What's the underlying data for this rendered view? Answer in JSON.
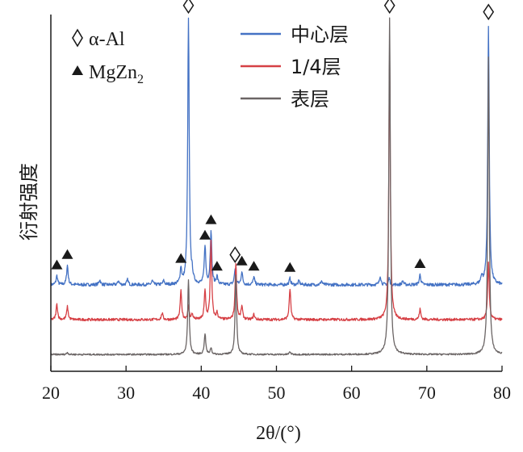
{
  "chart_data": {
    "type": "line",
    "xlabel": "2θ/(°)",
    "ylabel": "衍射强度",
    "xlim": [
      20,
      80
    ],
    "xticks": [
      20,
      30,
      40,
      50,
      60,
      70,
      80
    ],
    "grid": false,
    "legend_placement": "top-center",
    "series": [
      {
        "name": "中心层",
        "color": "#4472c4",
        "baseline": 0.62,
        "noise": 0.012,
        "peaks": [
          [
            20.8,
            0.07
          ],
          [
            22.2,
            0.15
          ],
          [
            26.5,
            0.04
          ],
          [
            29.0,
            0.03
          ],
          [
            30.2,
            0.04
          ],
          [
            33.5,
            0.03
          ],
          [
            35.0,
            0.03
          ],
          [
            37.3,
            0.12
          ],
          [
            38.3,
            2.05
          ],
          [
            38.8,
            0.05
          ],
          [
            40.5,
            0.3
          ],
          [
            41.3,
            0.42
          ],
          [
            42.1,
            0.06
          ],
          [
            44.5,
            0.12
          ],
          [
            45.4,
            0.1
          ],
          [
            47.0,
            0.06
          ],
          [
            51.8,
            0.05
          ],
          [
            53.0,
            0.03
          ],
          [
            56.0,
            0.03
          ],
          [
            63.8,
            0.07
          ],
          [
            65.0,
            0.05
          ],
          [
            66.8,
            0.03
          ],
          [
            69.1,
            0.08
          ],
          [
            77.3,
            0.06
          ],
          [
            78.2,
            2.0
          ]
        ]
      },
      {
        "name": "1/4层",
        "color": "#d64045",
        "baseline": 0.35,
        "noise": 0.01,
        "peaks": [
          [
            20.8,
            0.12
          ],
          [
            22.2,
            0.1
          ],
          [
            34.8,
            0.05
          ],
          [
            37.3,
            0.22
          ],
          [
            38.3,
            0.1
          ],
          [
            38.8,
            0.04
          ],
          [
            40.5,
            0.22
          ],
          [
            41.3,
            0.6
          ],
          [
            42.1,
            0.05
          ],
          [
            44.6,
            0.44
          ],
          [
            45.4,
            0.1
          ],
          [
            47.0,
            0.04
          ],
          [
            51.8,
            0.24
          ],
          [
            65.05,
            2.05
          ],
          [
            69.1,
            0.08
          ],
          [
            78.2,
            0.45
          ]
        ]
      },
      {
        "name": "表层",
        "color": "#6b6565",
        "baseline": 0.08,
        "noise": 0.006,
        "peaks": [
          [
            22.2,
            0.015
          ],
          [
            38.3,
            0.58
          ],
          [
            40.5,
            0.16
          ],
          [
            41.3,
            0.05
          ],
          [
            44.6,
            0.62
          ],
          [
            51.8,
            0.02
          ],
          [
            65.05,
            2.6
          ],
          [
            78.2,
            2.3
          ]
        ]
      }
    ],
    "phases": [
      {
        "label": "α-Al",
        "marker": "diamond",
        "positions": [
          [
            38.3,
            2.05
          ],
          [
            44.5,
            0.12
          ],
          [
            65.05,
            2.05
          ],
          [
            78.2,
            2.0
          ]
        ]
      },
      {
        "label": "MgZn",
        "label_sub": "2",
        "marker": "triangle",
        "positions": [
          [
            20.8,
            0.07
          ],
          [
            22.2,
            0.15
          ],
          [
            37.3,
            0.12
          ],
          [
            40.5,
            0.3
          ],
          [
            41.3,
            0.42
          ],
          [
            42.1,
            0.06
          ],
          [
            45.4,
            0.1
          ],
          [
            47.0,
            0.06
          ],
          [
            51.8,
            0.05
          ],
          [
            69.1,
            0.08
          ]
        ]
      }
    ]
  }
}
